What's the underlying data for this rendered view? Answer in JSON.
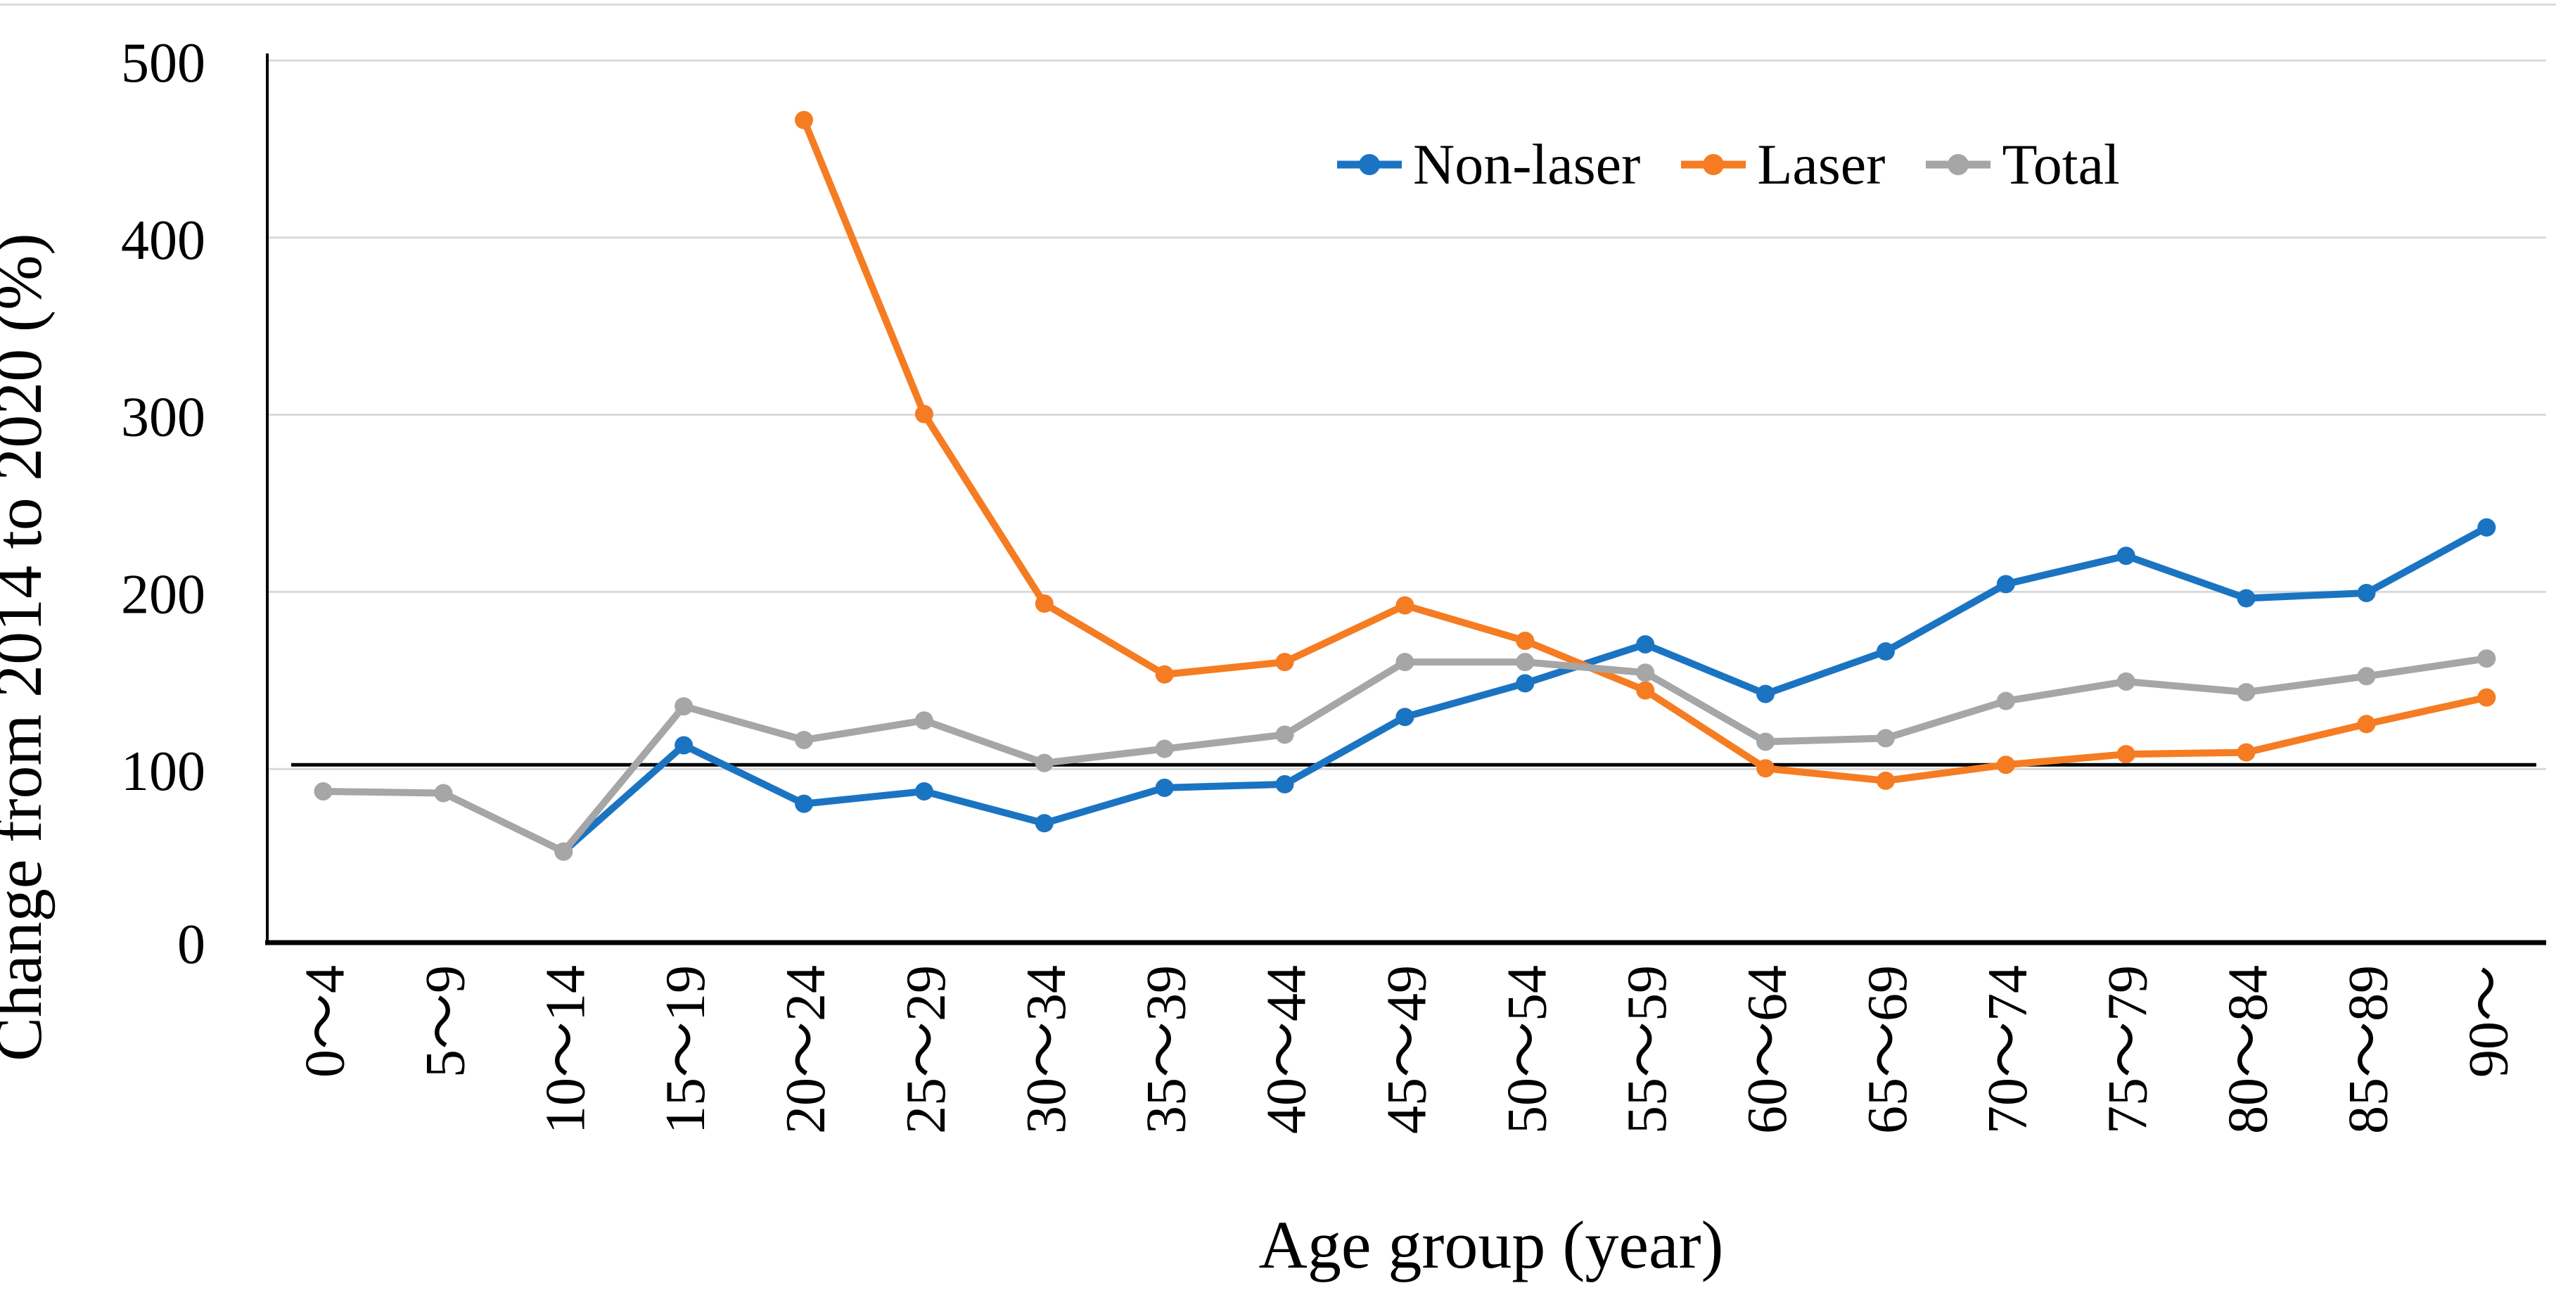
{
  "figure": {
    "background": "#ffffff",
    "top_border_color": "#dcdcdc"
  },
  "colors": {
    "non_laser": "#1b74c2",
    "laser": "#f57c22",
    "total": "#a6a6a6",
    "gridline": "#d9d9d9",
    "axis": "#000000",
    "reference_line": "#000000"
  },
  "chart_data": {
    "type": "line",
    "title": "",
    "xlabel": "Age group (year)",
    "ylabel": "Change from 2014  to 2020 (%)",
    "categories": [
      "0～4",
      "5～9",
      "10～14",
      "15～19",
      "20～24",
      "25～29",
      "30～34",
      "35～39",
      "40～44",
      "45～49",
      "50～54",
      "55～59",
      "60～64",
      "65～69",
      "70～74",
      "75～79",
      "80～84",
      "85～89",
      "90～"
    ],
    "y_ticks": [
      0,
      100,
      200,
      300,
      400,
      500
    ],
    "ylim": [
      0,
      500
    ],
    "grid": "horizontal",
    "reference_line": {
      "value": 100,
      "color": "#000000"
    },
    "legend_position": "top-center-inside",
    "series": [
      {
        "name": "Non-laser",
        "color": "#1b74c2",
        "start_index": 2,
        "values": [
          51,
          111,
          78,
          85,
          67,
          87,
          89,
          127,
          146,
          168,
          140,
          164,
          202,
          218,
          194,
          197,
          234
        ]
      },
      {
        "name": "Laser",
        "color": "#f57c22",
        "start_index": 4,
        "values": [
          464,
          298,
          191,
          151,
          158,
          190,
          170,
          142,
          98,
          91,
          100,
          106,
          107,
          123,
          138
        ]
      },
      {
        "name": "Total",
        "color": "#a6a6a6",
        "start_index": 0,
        "values": [
          85,
          84,
          51,
          133,
          114,
          125,
          101,
          109,
          117,
          158,
          158,
          152,
          113,
          115,
          136,
          147,
          141,
          150,
          160
        ]
      }
    ]
  }
}
